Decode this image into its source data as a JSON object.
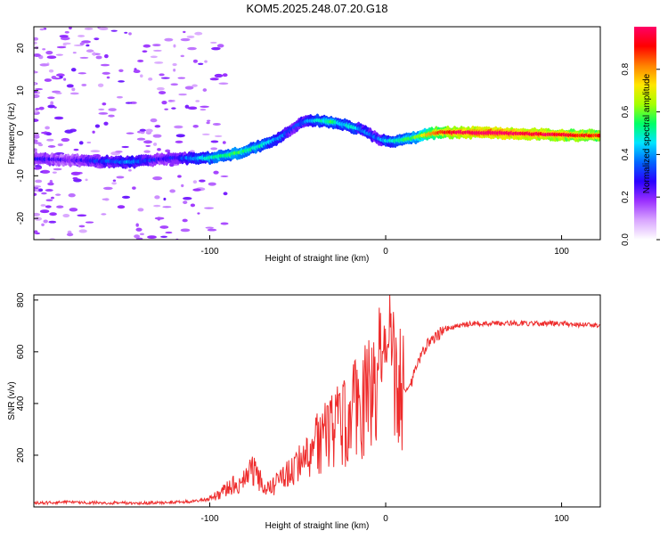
{
  "title": "KOM5.2025.248.07.20.G18",
  "colors": {
    "snr_line": "#ee2b2b",
    "axes": "#000000",
    "background": "#ffffff"
  },
  "chart_data": [
    {
      "type": "heatmap",
      "xlabel": "Height of straight line (km)",
      "ylabel": "Frequency (Hz)",
      "xlim": [
        -200,
        122
      ],
      "ylim": [
        -25,
        25
      ],
      "xticks": [
        -100,
        0,
        100
      ],
      "xtick_labels": [
        "-100",
        "0",
        "100"
      ],
      "yticks": [
        -20,
        -10,
        0,
        10,
        20
      ],
      "ytick_labels": [
        "-20",
        "-10",
        "0",
        "10",
        "20"
      ],
      "colorbar": {
        "label": "Normalized spectral amplitude",
        "range": [
          0.0,
          1.0
        ],
        "ticks": [
          0.0,
          0.2,
          0.4,
          0.6,
          0.8
        ],
        "tick_labels": [
          "0.0",
          "0.2",
          "0.4",
          "0.6",
          "0.8"
        ],
        "colormap": [
          "#ffffff",
          "#d9a6ff",
          "#9b30ff",
          "#2a00ff",
          "#0066ff",
          "#00e5ff",
          "#00ff66",
          "#a6ff00",
          "#ffe600",
          "#ff8000",
          "#ff0000",
          "#ff0066"
        ]
      },
      "ridge": {
        "height_km": [
          -200,
          -180,
          -160,
          -145,
          -130,
          -120,
          -110,
          -100,
          -90,
          -80,
          -70,
          -60,
          -55,
          -50,
          -45,
          -40,
          -35,
          -30,
          -25,
          -20,
          -15,
          -10,
          -5,
          0,
          5,
          10,
          15,
          20,
          30,
          40,
          60,
          80,
          100,
          122
        ],
        "frequency_hz": [
          -6,
          -6.3,
          -6.6,
          -6.8,
          -6.2,
          -5.8,
          -5.9,
          -5.8,
          -5.2,
          -4.2,
          -2.8,
          -1,
          0.5,
          2,
          2.8,
          3,
          2.8,
          2.6,
          2.2,
          1.5,
          1,
          0,
          -1.2,
          -1.8,
          -1.8,
          -1.6,
          -1.2,
          -0.6,
          0.2,
          0.2,
          0.1,
          -0.1,
          -0.4,
          -0.6
        ],
        "amplitude": [
          0.25,
          0.2,
          0.3,
          0.35,
          0.25,
          0.25,
          0.35,
          0.45,
          0.5,
          0.5,
          0.45,
          0.35,
          0.3,
          0.3,
          0.35,
          0.4,
          0.45,
          0.5,
          0.4,
          0.45,
          0.35,
          0.35,
          0.3,
          0.4,
          0.45,
          0.5,
          0.5,
          0.6,
          0.8,
          0.88,
          0.95,
          0.9,
          0.85,
          0.8
        ]
      }
    },
    {
      "type": "line",
      "xlabel": "Height of straight line (km)",
      "ylabel": "SNR (v/v)",
      "xlim": [
        -200,
        122
      ],
      "ylim": [
        0,
        820
      ],
      "xticks": [
        -100,
        0,
        100
      ],
      "xtick_labels": [
        "-100",
        "0",
        "100"
      ],
      "yticks": [
        200,
        400,
        600,
        800
      ],
      "ytick_labels": [
        "200",
        "400",
        "600",
        "800"
      ],
      "series": [
        {
          "name": "SNR",
          "x": [
            -200,
            -180,
            -160,
            -140,
            -120,
            -110,
            -100,
            -95,
            -90,
            -85,
            -80,
            -75,
            -70,
            -65,
            -60,
            -55,
            -50,
            -45,
            -40,
            -35,
            -30,
            -25,
            -20,
            -15,
            -10,
            -5,
            0,
            2,
            5,
            10,
            15,
            20,
            25,
            30,
            35,
            40,
            50,
            60,
            80,
            100,
            122
          ],
          "y": [
            15,
            18,
            16,
            15,
            18,
            22,
            30,
            50,
            70,
            90,
            110,
            140,
            85,
            70,
            110,
            130,
            160,
            200,
            230,
            260,
            290,
            320,
            360,
            380,
            420,
            480,
            550,
            700,
            500,
            430,
            490,
            580,
            640,
            670,
            690,
            700,
            710,
            710,
            710,
            710,
            700
          ]
        }
      ]
    }
  ]
}
